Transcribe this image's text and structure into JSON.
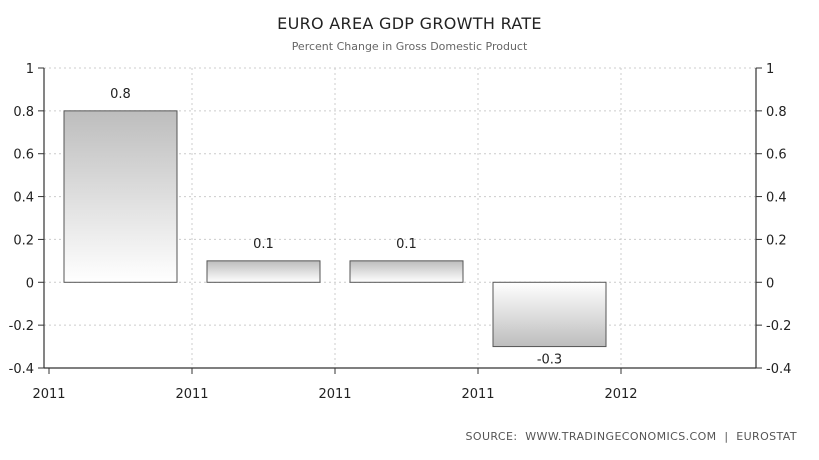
{
  "chart_data": {
    "type": "bar",
    "title": "EURO AREA GDP GROWTH RATE",
    "subtitle": "Percent Change in Gross Domestic Product",
    "categories": [
      "2011",
      "2011",
      "2011",
      "2012"
    ],
    "x_ticks": [
      "2011",
      "2011",
      "2011",
      "2011",
      "2012"
    ],
    "values": [
      0.8,
      0.1,
      0.1,
      -0.3
    ],
    "data_labels": [
      "0.8",
      "0.1",
      "0.1",
      "-0.3"
    ],
    "y_ticks": [
      "1",
      "0.8",
      "0.6",
      "0.4",
      "0.2",
      "0",
      "-0.2",
      "-0.4"
    ],
    "ylim": [
      -0.4,
      1
    ],
    "grid": true,
    "xlabel": "",
    "ylabel": ""
  },
  "footer": {
    "source_label": "SOURCE:",
    "source_site": "WWW.TRADINGECONOMICS.COM",
    "separator": "|",
    "source_org": "EUROSTAT"
  },
  "colors": {
    "bar_top": "#bdbdbd",
    "bar_bottom": "#ffffff",
    "bar_stroke": "#555555",
    "grid": "#cccccc",
    "axis": "#333333"
  }
}
